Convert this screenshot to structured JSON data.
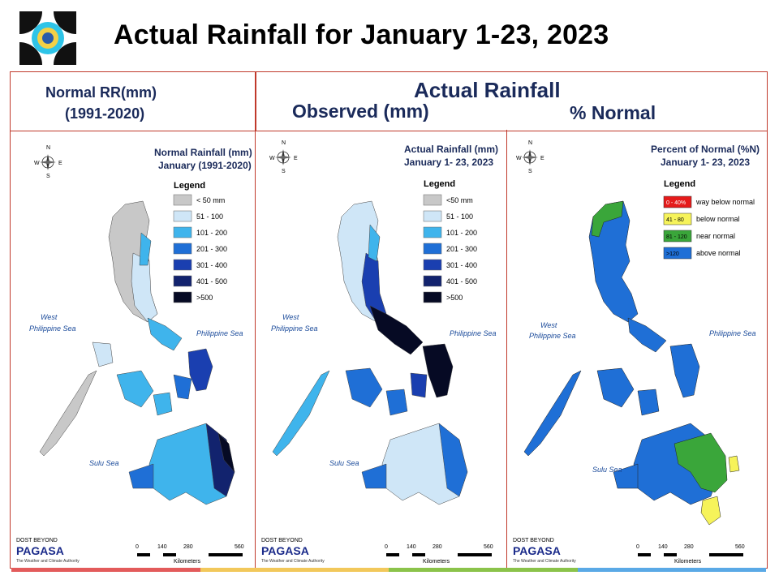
{
  "title": "Actual Rainfall for January 1-23, 2023",
  "header": {
    "normal_line1": "Normal RR(mm)",
    "normal_line2": "(1991-2020)",
    "actual": "Actual Rainfall",
    "observed": "Observed (mm)",
    "percent": "% Normal"
  },
  "panels": [
    {
      "title1": "Normal Rainfall (mm)",
      "title2": "January (1991-2020)",
      "legend_title": "Legend",
      "legend": [
        {
          "label": "< 50 mm",
          "color": "#c8c8c8"
        },
        {
          "label": "51 - 100",
          "color": "#cfe6f7"
        },
        {
          "label": "101 - 200",
          "color": "#3fb4ec"
        },
        {
          "label": "201 - 300",
          "color": "#1f6fd6"
        },
        {
          "label": "301 - 400",
          "color": "#1a3fb0"
        },
        {
          "label": "401 - 500",
          "color": "#12236e"
        },
        {
          "label": ">500",
          "color": "#060a24"
        }
      ]
    },
    {
      "title1": "Actual Rainfall (mm)",
      "title2": "January 1- 23, 2023",
      "legend_title": "Legend",
      "legend": [
        {
          "label": "<50 mm",
          "color": "#c8c8c8"
        },
        {
          "label": "51 - 100",
          "color": "#cfe6f7"
        },
        {
          "label": "101 - 200",
          "color": "#3fb4ec"
        },
        {
          "label": "201 - 300",
          "color": "#1f6fd6"
        },
        {
          "label": "301 - 400",
          "color": "#1a3fb0"
        },
        {
          "label": "401 - 500",
          "color": "#12236e"
        },
        {
          "label": ">500",
          "color": "#060a24"
        }
      ]
    },
    {
      "title1": "Percent of Normal (%N)",
      "title2": "January 1- 23, 2023",
      "legend_title": "Legend",
      "legend": [
        {
          "swatch": "0 - 40%",
          "label": "way below normal",
          "color": "#e51b1b"
        },
        {
          "swatch": "41 - 80",
          "label": "below normal",
          "color": "#f6f35a"
        },
        {
          "swatch": "81 - 120",
          "label": "near normal",
          "color": "#3aa63a"
        },
        {
          "swatch": ">120",
          "label": "above normal",
          "color": "#1f6fd6"
        }
      ]
    }
  ],
  "labels": {
    "west_sea_1": "West",
    "west_sea_2": "Philippine Sea",
    "philippine_sea": "Philippine Sea",
    "sulu_sea": "Sulu Sea",
    "north": "N",
    "south": "S",
    "east": "E",
    "west": "W",
    "scale_ticks": [
      "0",
      "140",
      "280",
      "560"
    ],
    "scale_unit": "Kilometers",
    "pagasa_top": "DOST BEYOND",
    "pagasa": "PAGASA",
    "pagasa_sub": "The Weather and Climate Authority"
  },
  "colors": {
    "frame": "#c0392b",
    "header_text": "#1a2a5a",
    "bottom_bar": [
      "#e35b5b",
      "#f2c85b",
      "#8bc34a",
      "#5aa9e6"
    ]
  }
}
